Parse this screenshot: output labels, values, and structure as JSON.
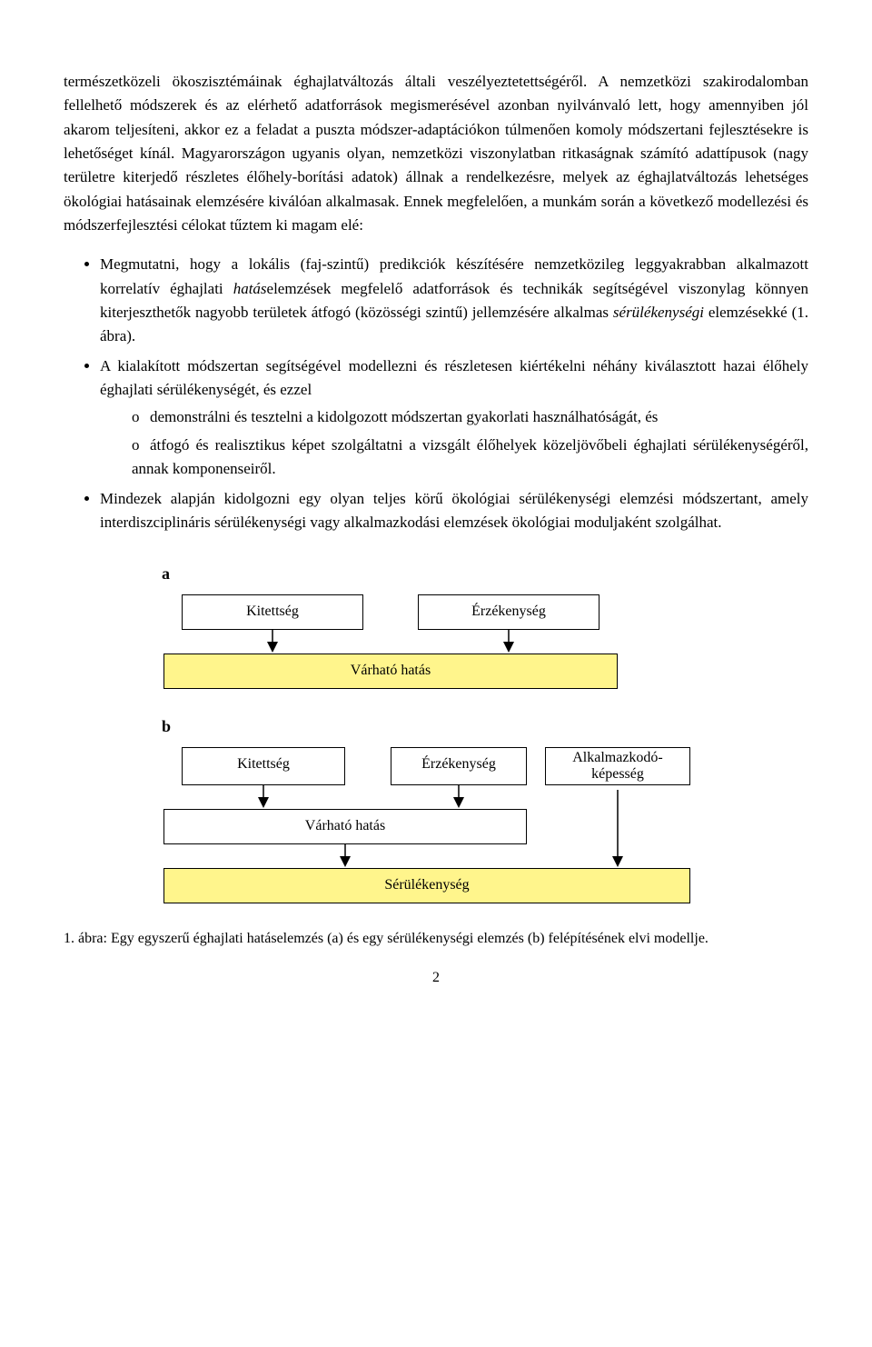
{
  "para1": "természetközeli ökoszisztémáinak éghajlatváltozás általi veszélyeztetettségéről. A nemzetközi szakirodalomban fellelhető módszerek és az elérhető adatforrások megismerésével azonban nyilvánvaló lett, hogy amennyiben jól akarom teljesíteni, akkor ez a feladat a puszta módszer-adaptációkon túlmenően komoly módszertani fejlesztésekre is lehetőséget kínál. Magyarországon ugyanis olyan, nemzetközi viszonylatban ritkaságnak számító adattípusok (nagy területre kiterjedő részletes élőhely-borítási adatok) állnak a rendelkezésre, melyek az éghajlatváltozás lehetséges ökológiai hatásainak elemzésére kiválóan alkalmasak. Ennek megfelelően, a munkám során a következő modellezési és módszerfejlesztési célokat tűztem ki magam elé:",
  "b1_pre": "Megmutatni, hogy a lokális (faj-szintű) predikciók készítésére nemzetközileg leggyakrabban alkalmazott korrelatív éghajlati ",
  "b1_em1": "hatás",
  "b1_mid": "elemzések megfelelő adatforrások és technikák segítségével viszonylag könnyen kiterjeszthetők nagyobb területek átfogó (közösségi szintű) jellemzésére alkalmas ",
  "b1_em2": "sérülékenységi",
  "b1_post": " elemzésekké (1. ábra).",
  "b2": "A kialakított módszertan segítségével modellezni és részletesen kiértékelni néhány kiválasztott hazai élőhely éghajlati sérülékenységét, és ezzel",
  "b2s1": "demonstrálni és tesztelni a kidolgozott módszertan gyakorlati használhatóságát, és",
  "b2s2": "átfogó és realisztikus képet szolgáltatni a vizsgált élőhelyek közeljövőbeli éghajlati sérülékenységéről, annak komponenseiről.",
  "b3": "Mindezek alapján kidolgozni egy olyan teljes körű ökológiai sérülékenységi elemzési módszertant, amely interdiszciplináris sérülékenységi vagy alkalmazkodási elemzések ökológiai moduljaként szolgálhat.",
  "diagram": {
    "panel_a_label": "a",
    "panel_b_label": "b",
    "kitettseg": "Kitettség",
    "erzekenyseg": "Érzékenység",
    "alkalmazkodokepesseg_l1": "Alkalmazkodó-",
    "alkalmazkodokepesseg_l2": "képesség",
    "varhato_hatas": "Várható hatás",
    "serulekenyseg": "Sérülékenység",
    "box_border": "#000000",
    "box_bg_white": "#ffffff",
    "box_bg_yellow": "#fff58c",
    "a": {
      "kitettseg_w": 200,
      "erzekenyseg_w": 200,
      "gap1": 60,
      "varhato_w": 500,
      "varhato_indent": 20
    },
    "b": {
      "kitettseg_w": 180,
      "erzekenyseg_w": 150,
      "alk_w": 160,
      "gap1": 50,
      "gap2": 20,
      "varhato_w": 400,
      "varhato_indent": 20,
      "serul_w": 580,
      "serul_indent": 0
    }
  },
  "caption": "1. ábra: Egy egyszerű éghajlati hatáselemzés (a) és egy sérülékenységi elemzés (b) felépítésének elvi modellje.",
  "page_number": "2"
}
